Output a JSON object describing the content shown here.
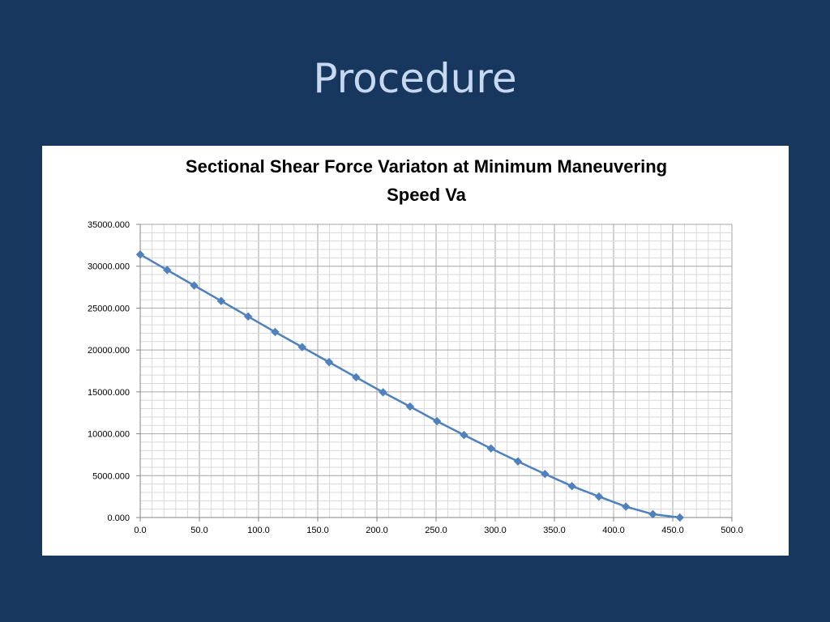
{
  "slide": {
    "title": "Procedure"
  },
  "colors": {
    "background": "#17375e",
    "title_text": "#c6d9f1",
    "series_line": "#4f81bd",
    "grid_major": "#a6a6a6",
    "grid_minor": "#d9d9d9"
  },
  "chart_data": {
    "type": "line",
    "title_lines": [
      "Sectional Shear Force Variaton at Minimum Maneuvering",
      "Speed Va"
    ],
    "xlabel": "",
    "ylabel": "",
    "xlim": [
      0,
      500
    ],
    "ylim": [
      0,
      35000
    ],
    "x_ticks": [
      "0.0",
      "50.0",
      "100.0",
      "150.0",
      "200.0",
      "250.0",
      "300.0",
      "350.0",
      "400.0",
      "450.0",
      "500.0"
    ],
    "y_ticks": [
      "0.000",
      "5000.000",
      "10000.000",
      "15000.000",
      "20000.000",
      "25000.000",
      "30000.000",
      "35000.000"
    ],
    "grid": true,
    "marker": "diamond",
    "series": [
      {
        "x": [
          0,
          22.8,
          45.6,
          68.4,
          91.2,
          114.0,
          136.8,
          159.6,
          182.4,
          205.2,
          228.0,
          250.8,
          273.6,
          296.4,
          319.2,
          342.0,
          364.8,
          387.6,
          410.4,
          433.2,
          456.0
        ],
        "y": [
          31400,
          29550,
          27700,
          25850,
          24000,
          22150,
          20350,
          18550,
          16750,
          14950,
          13250,
          11500,
          9850,
          8250,
          6700,
          5200,
          3750,
          2500,
          1300,
          400,
          0
        ]
      }
    ]
  }
}
